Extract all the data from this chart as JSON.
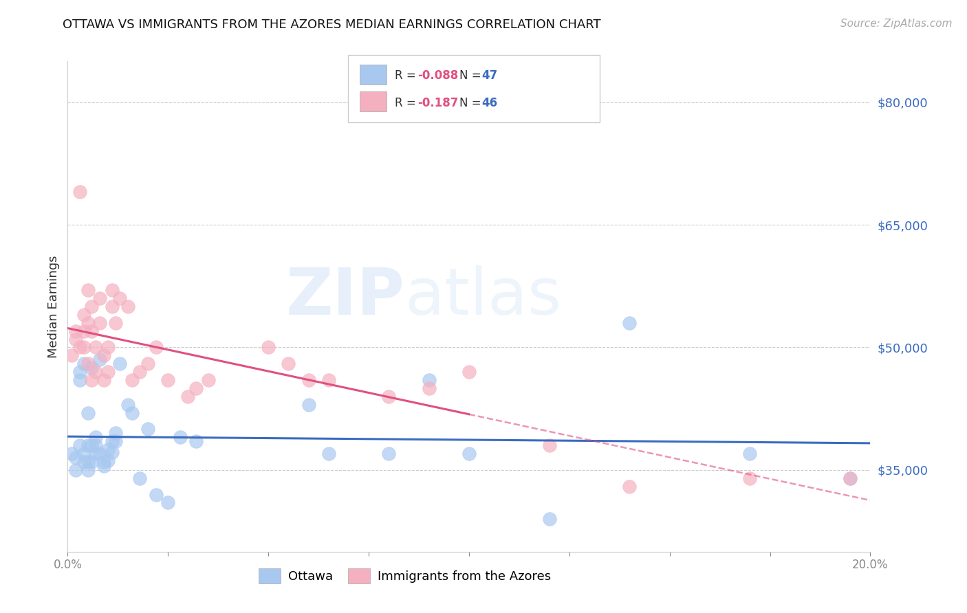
{
  "title": "OTTAWA VS IMMIGRANTS FROM THE AZORES MEDIAN EARNINGS CORRELATION CHART",
  "source": "Source: ZipAtlas.com",
  "ylabel": "Median Earnings",
  "xlim": [
    0.0,
    0.2
  ],
  "ylim": [
    25000,
    85000
  ],
  "yticks": [
    35000,
    50000,
    65000,
    80000
  ],
  "ytick_labels": [
    "$35,000",
    "$50,000",
    "$65,000",
    "$80,000"
  ],
  "xticks": [
    0.0,
    0.025,
    0.05,
    0.075,
    0.1,
    0.125,
    0.15,
    0.175,
    0.2
  ],
  "xtick_labels": [
    "0.0%",
    "",
    "",
    "",
    "",
    "",
    "",
    "",
    "20.0%"
  ],
  "blue_color": "#a8c8f0",
  "pink_color": "#f5b0c0",
  "line_blue": "#3a6bbf",
  "line_pink": "#e05080",
  "watermark_zip": "ZIP",
  "watermark_atlas": "atlas",
  "background_color": "#ffffff",
  "ottawa_x": [
    0.001,
    0.002,
    0.002,
    0.003,
    0.003,
    0.003,
    0.004,
    0.004,
    0.004,
    0.005,
    0.005,
    0.005,
    0.005,
    0.006,
    0.006,
    0.006,
    0.007,
    0.007,
    0.007,
    0.008,
    0.008,
    0.009,
    0.009,
    0.01,
    0.01,
    0.011,
    0.011,
    0.012,
    0.012,
    0.013,
    0.015,
    0.016,
    0.018,
    0.02,
    0.022,
    0.025,
    0.028,
    0.032,
    0.06,
    0.065,
    0.08,
    0.09,
    0.1,
    0.12,
    0.14,
    0.17,
    0.195
  ],
  "ottawa_y": [
    37000,
    36500,
    35000,
    47000,
    46000,
    38000,
    48000,
    37000,
    36000,
    42000,
    38000,
    36000,
    35000,
    47500,
    36000,
    38000,
    37000,
    39000,
    38000,
    48500,
    37000,
    36000,
    35500,
    37500,
    36200,
    38500,
    37200,
    39500,
    38500,
    48000,
    43000,
    42000,
    34000,
    40000,
    32000,
    31000,
    39000,
    38500,
    43000,
    37000,
    37000,
    46000,
    37000,
    29000,
    53000,
    37000,
    34000
  ],
  "azores_x": [
    0.001,
    0.002,
    0.002,
    0.003,
    0.003,
    0.004,
    0.004,
    0.004,
    0.005,
    0.005,
    0.005,
    0.006,
    0.006,
    0.006,
    0.007,
    0.007,
    0.008,
    0.008,
    0.009,
    0.009,
    0.01,
    0.01,
    0.011,
    0.011,
    0.012,
    0.013,
    0.015,
    0.016,
    0.018,
    0.02,
    0.022,
    0.025,
    0.03,
    0.032,
    0.035,
    0.05,
    0.055,
    0.06,
    0.065,
    0.08,
    0.09,
    0.1,
    0.12,
    0.14,
    0.17,
    0.195
  ],
  "azores_y": [
    49000,
    51000,
    52000,
    69000,
    50000,
    54000,
    52000,
    50000,
    53000,
    57000,
    48000,
    55000,
    52000,
    46000,
    50000,
    47000,
    56000,
    53000,
    49000,
    46000,
    50000,
    47000,
    55000,
    57000,
    53000,
    56000,
    55000,
    46000,
    47000,
    48000,
    50000,
    46000,
    44000,
    45000,
    46000,
    50000,
    48000,
    46000,
    46000,
    44000,
    45000,
    47000,
    38000,
    33000,
    34000,
    34000
  ]
}
